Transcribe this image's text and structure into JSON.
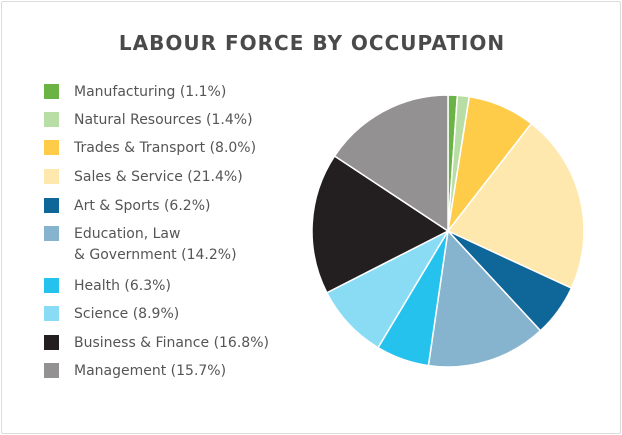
{
  "chart_data": {
    "type": "pie",
    "title": "LABOUR FORCE BY OCCUPATION",
    "legend_position": "left",
    "slices": [
      {
        "label": "Manufacturing (1.1%)",
        "name": "Manufacturing",
        "value": 1.1,
        "color": "#6ab344"
      },
      {
        "label": "Natural Resources (1.4%)",
        "name": "Natural Resources",
        "value": 1.4,
        "color": "#b8dea5"
      },
      {
        "label": "Trades & Transport (8.0%)",
        "name": "Trades & Transport",
        "value": 8.0,
        "color": "#ffcc4a"
      },
      {
        "label": "Sales & Service (21.4%)",
        "name": "Sales & Service",
        "value": 21.4,
        "color": "#ffe8ad"
      },
      {
        "label": "Art & Sports (6.2%)",
        "name": "Art & Sports",
        "value": 6.2,
        "color": "#0f6699"
      },
      {
        "label": "Education, Law\n& Government (14.2%)",
        "name": "Education, Law & Government",
        "value": 14.2,
        "color": "#86b4cf"
      },
      {
        "label": "Health (6.3%)",
        "name": "Health",
        "value": 6.3,
        "color": "#26c2ee"
      },
      {
        "label": "Science (8.9%)",
        "name": "Science",
        "value": 8.9,
        "color": "#8adcf5"
      },
      {
        "label": "Business & Finance (16.8%)",
        "name": "Business & Finance",
        "value": 16.8,
        "color": "#231f20"
      },
      {
        "label": "Management (15.7%)",
        "name": "Management",
        "value": 15.7,
        "color": "#939191"
      }
    ]
  }
}
